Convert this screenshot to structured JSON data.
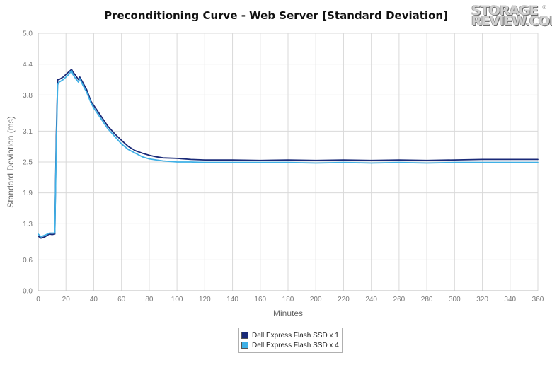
{
  "logo": {
    "line1": "STORAGE",
    "line2": "REVIEW.COM",
    "mark": "®"
  },
  "chart_data": {
    "type": "line",
    "title": "Preconditioning Curve - Web Server [Standard Deviation]",
    "xlabel": "Minutes",
    "ylabel": "Standard Deviation (ms)",
    "xlim": [
      0,
      360
    ],
    "ylim": [
      0,
      5.0
    ],
    "x_ticks": [
      0,
      20,
      40,
      60,
      80,
      100,
      120,
      140,
      160,
      180,
      200,
      220,
      240,
      260,
      280,
      300,
      320,
      340,
      360
    ],
    "y_ticks": [
      0.0,
      0.6,
      1.3,
      1.9,
      2.5,
      3.1,
      3.8,
      4.4,
      5.0
    ],
    "y_tick_labels": [
      "0.0",
      "0.6",
      "1.3",
      "1.9",
      "2.5",
      "3.1",
      "3.8",
      "4.4",
      "5.0"
    ],
    "grid": true,
    "legend_position": "bottom-center",
    "series": [
      {
        "name": "Dell Express Flash SSD x 1",
        "color": "#1a2a78",
        "x": [
          0,
          2,
          5,
          8,
          10,
          12,
          13,
          14,
          15,
          18,
          20,
          22,
          24,
          25,
          27,
          29,
          30,
          32,
          35,
          38,
          40,
          45,
          50,
          55,
          60,
          65,
          70,
          75,
          80,
          85,
          90,
          100,
          110,
          120,
          140,
          160,
          180,
          200,
          220,
          240,
          260,
          280,
          300,
          320,
          340,
          360
        ],
        "y": [
          1.06,
          1.02,
          1.05,
          1.1,
          1.09,
          1.1,
          3.0,
          4.1,
          4.1,
          4.15,
          4.2,
          4.25,
          4.3,
          4.25,
          4.18,
          4.1,
          4.15,
          4.05,
          3.9,
          3.68,
          3.6,
          3.4,
          3.2,
          3.05,
          2.92,
          2.8,
          2.72,
          2.67,
          2.63,
          2.6,
          2.58,
          2.57,
          2.55,
          2.54,
          2.54,
          2.53,
          2.54,
          2.53,
          2.54,
          2.53,
          2.54,
          2.53,
          2.54,
          2.55,
          2.55,
          2.55
        ]
      },
      {
        "name": "Dell Express Flash SSD x 4",
        "color": "#3fb0e6",
        "x": [
          0,
          2,
          5,
          8,
          10,
          12,
          13,
          14,
          15,
          18,
          20,
          22,
          24,
          25,
          27,
          29,
          30,
          32,
          35,
          38,
          40,
          45,
          50,
          55,
          60,
          65,
          70,
          75,
          80,
          85,
          90,
          100,
          110,
          120,
          140,
          160,
          180,
          200,
          220,
          240,
          260,
          280,
          300,
          320,
          340,
          360
        ],
        "y": [
          1.1,
          1.05,
          1.08,
          1.12,
          1.12,
          1.12,
          2.8,
          4.0,
          4.05,
          4.1,
          4.15,
          4.2,
          4.27,
          4.2,
          4.12,
          4.05,
          4.12,
          4.0,
          3.85,
          3.65,
          3.55,
          3.35,
          3.15,
          3.0,
          2.85,
          2.74,
          2.67,
          2.6,
          2.56,
          2.54,
          2.52,
          2.5,
          2.5,
          2.49,
          2.49,
          2.49,
          2.49,
          2.48,
          2.49,
          2.48,
          2.49,
          2.48,
          2.49,
          2.49,
          2.49,
          2.49
        ]
      }
    ]
  }
}
